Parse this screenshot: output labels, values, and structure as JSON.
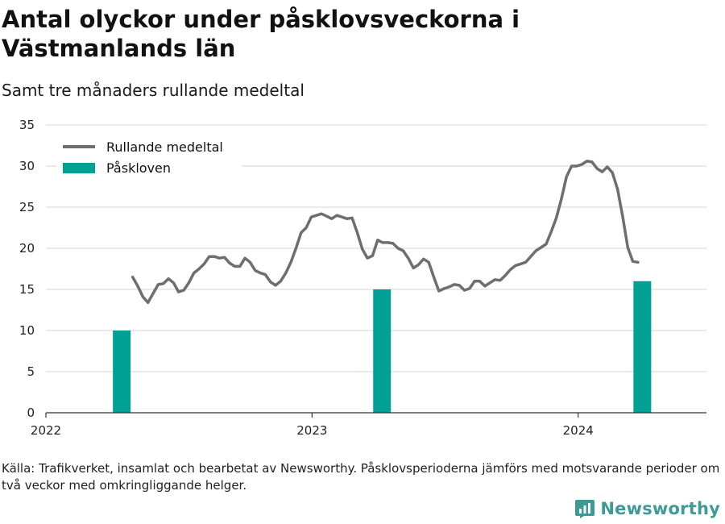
{
  "header": {
    "title": "Antal olyckor under påsklovsveckorna i Västmanlands län",
    "subtitle": "Samt tre månaders rullande medeltal"
  },
  "footer": {
    "source": "Källa: Trafikverket, insamlat och bearbetat av Newsworthy. Påsklovsperioderna jämförs med motsvarande perioder om två veckor med omkringliggande helger.",
    "brand": "Newsworthy"
  },
  "colors": {
    "line": "#6d6d72",
    "bar": "#00a095",
    "grid": "#d6d6d6",
    "axis": "#333333",
    "brand": "#3d9a95"
  },
  "chart_data": {
    "type": "bar+line",
    "x_axis": {
      "type": "date",
      "min": "2022-01-01",
      "max": "2024-06-25",
      "ticks": [
        "2022",
        "2023",
        "2024"
      ]
    },
    "y_axis": {
      "min": 0,
      "max": 35,
      "ticks": [
        0,
        5,
        10,
        15,
        20,
        25,
        30,
        35
      ]
    },
    "grid": true,
    "legend": {
      "position": "top-left",
      "items": [
        "Rullande medeltal",
        "Påskloven"
      ]
    },
    "bars": {
      "name": "Påskloven",
      "points": [
        {
          "x": "2022-04-15",
          "y": 10
        },
        {
          "x": "2023-04-07",
          "y": 15
        },
        {
          "x": "2024-03-29",
          "y": 16
        }
      ]
    },
    "line": {
      "name": "Rullande medeltal",
      "points": [
        [
          "2022-04-30",
          16.5
        ],
        [
          "2022-05-07",
          15.4
        ],
        [
          "2022-05-14",
          14.1
        ],
        [
          "2022-05-21",
          13.4
        ],
        [
          "2022-05-28",
          14.5
        ],
        [
          "2022-06-04",
          15.6
        ],
        [
          "2022-06-11",
          15.7
        ],
        [
          "2022-06-18",
          16.3
        ],
        [
          "2022-06-25",
          15.8
        ],
        [
          "2022-07-02",
          14.7
        ],
        [
          "2022-07-09",
          14.9
        ],
        [
          "2022-07-16",
          15.8
        ],
        [
          "2022-07-23",
          17.0
        ],
        [
          "2022-07-30",
          17.5
        ],
        [
          "2022-08-06",
          18.1
        ],
        [
          "2022-08-13",
          19.0
        ],
        [
          "2022-08-20",
          19.0
        ],
        [
          "2022-08-27",
          18.8
        ],
        [
          "2022-09-03",
          18.9
        ],
        [
          "2022-09-10",
          18.2
        ],
        [
          "2022-09-17",
          17.8
        ],
        [
          "2022-09-24",
          17.8
        ],
        [
          "2022-10-01",
          18.8
        ],
        [
          "2022-10-08",
          18.3
        ],
        [
          "2022-10-15",
          17.3
        ],
        [
          "2022-10-22",
          17.0
        ],
        [
          "2022-10-29",
          16.8
        ],
        [
          "2022-11-05",
          15.9
        ],
        [
          "2022-11-12",
          15.5
        ],
        [
          "2022-11-19",
          16.0
        ],
        [
          "2022-11-26",
          17.0
        ],
        [
          "2022-12-03",
          18.3
        ],
        [
          "2022-12-10",
          20.0
        ],
        [
          "2022-12-17",
          21.9
        ],
        [
          "2022-12-24",
          22.5
        ],
        [
          "2022-12-31",
          23.8
        ],
        [
          "2023-01-07",
          24.0
        ],
        [
          "2023-01-14",
          24.2
        ],
        [
          "2023-01-21",
          23.9
        ],
        [
          "2023-01-28",
          23.6
        ],
        [
          "2023-02-04",
          24.0
        ],
        [
          "2023-02-11",
          23.8
        ],
        [
          "2023-02-18",
          23.6
        ],
        [
          "2023-02-25",
          23.7
        ],
        [
          "2023-03-04",
          21.9
        ],
        [
          "2023-03-11",
          19.9
        ],
        [
          "2023-03-18",
          18.8
        ],
        [
          "2023-03-25",
          19.1
        ],
        [
          "2023-04-01",
          21.0
        ],
        [
          "2023-04-08",
          20.7
        ],
        [
          "2023-04-15",
          20.7
        ],
        [
          "2023-04-22",
          20.6
        ],
        [
          "2023-04-29",
          20.0
        ],
        [
          "2023-05-06",
          19.7
        ],
        [
          "2023-05-13",
          18.8
        ],
        [
          "2023-05-20",
          17.6
        ],
        [
          "2023-05-27",
          18.0
        ],
        [
          "2023-06-03",
          18.7
        ],
        [
          "2023-06-10",
          18.3
        ],
        [
          "2023-06-17",
          16.5
        ],
        [
          "2023-06-24",
          14.8
        ],
        [
          "2023-07-01",
          15.1
        ],
        [
          "2023-07-08",
          15.3
        ],
        [
          "2023-07-15",
          15.6
        ],
        [
          "2023-07-22",
          15.5
        ],
        [
          "2023-07-29",
          14.9
        ],
        [
          "2023-08-05",
          15.1
        ],
        [
          "2023-08-12",
          16.0
        ],
        [
          "2023-08-19",
          16.0
        ],
        [
          "2023-08-26",
          15.4
        ],
        [
          "2023-09-02",
          15.8
        ],
        [
          "2023-09-09",
          16.2
        ],
        [
          "2023-09-16",
          16.1
        ],
        [
          "2023-09-23",
          16.7
        ],
        [
          "2023-09-30",
          17.4
        ],
        [
          "2023-10-07",
          17.9
        ],
        [
          "2023-10-14",
          18.1
        ],
        [
          "2023-10-21",
          18.3
        ],
        [
          "2023-10-28",
          19.0
        ],
        [
          "2023-11-04",
          19.7
        ],
        [
          "2023-11-11",
          20.1
        ],
        [
          "2023-11-18",
          20.5
        ],
        [
          "2023-11-25",
          22.0
        ],
        [
          "2023-12-02",
          23.7
        ],
        [
          "2023-12-09",
          26.0
        ],
        [
          "2023-12-16",
          28.7
        ],
        [
          "2023-12-23",
          30.0
        ],
        [
          "2023-12-30",
          30.0
        ],
        [
          "2024-01-06",
          30.2
        ],
        [
          "2024-01-13",
          30.6
        ],
        [
          "2024-01-20",
          30.5
        ],
        [
          "2024-01-27",
          29.7
        ],
        [
          "2024-02-03",
          29.3
        ],
        [
          "2024-02-10",
          29.9
        ],
        [
          "2024-02-17",
          29.2
        ],
        [
          "2024-02-24",
          27.2
        ],
        [
          "2024-03-02",
          23.9
        ],
        [
          "2024-03-09",
          20.1
        ],
        [
          "2024-03-16",
          18.4
        ],
        [
          "2024-03-23",
          18.3
        ]
      ]
    }
  }
}
